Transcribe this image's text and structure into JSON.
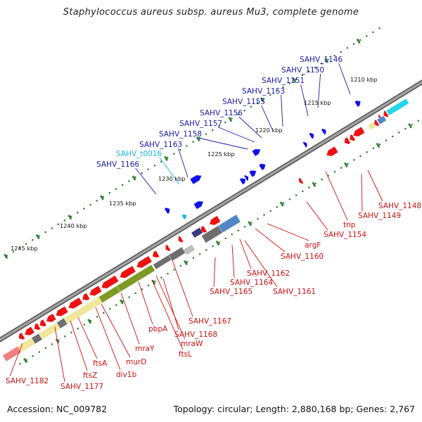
{
  "title": "Staphylococcus aureus subsp. aureus Mu3, complete genome",
  "footer": {
    "accession": "Accession: NC_009782",
    "summary": "Topology: circular; Length: 2,880,168 bp; Genes: 2,767"
  },
  "colors": {
    "backbone": "#8a8a8a",
    "forward_cds": "#1010ee",
    "reverse_cds": "#ee1111",
    "label_forward": "#1a1aa8",
    "label_reverse": "#d01010",
    "label_rna": "#19b4e8",
    "ticks": "#2e7d2e",
    "cog_olive": "#7d9a25",
    "cog_yellow": "#efe79a",
    "cog_gray": "#6e6e6e",
    "cog_steel": "#4f86c6",
    "cog_cyan": "#20d8e8",
    "cog_pink": "#f08080"
  },
  "kbp_ticks": [
    "1210 kbp",
    "1215 kbp",
    "1220 kbp",
    "1225 kbp",
    "1230 kbp",
    "1235 kbp",
    "1240 kbp",
    "1245 kbp"
  ],
  "forward_labels": [
    "SAHV_1146",
    "SAHV_1150",
    "SAHV_1151",
    "SAHV_1153",
    "SAHV_1155",
    "SAHV_1156",
    "SAHV_1157",
    "SAHV_1158",
    "SAHV_1163",
    "SAHV_t0016",
    "SAHV_1166"
  ],
  "reverse_labels": [
    "SAHV_1148",
    "SAHV_1149",
    "tnp",
    "SAHV_1154",
    "argF",
    "SAHV_1160",
    "SAHV_1162",
    "SAHV_1164",
    "SAHV_1161",
    "SAHV_1165",
    "SAHV_1167",
    "SAHV_1168",
    "mraW",
    "ftsL",
    "pbpA",
    "mraY",
    "murD",
    "div1b",
    "ftsA",
    "ftsZ",
    "SAHV_1177",
    "SAHV_1182"
  ]
}
